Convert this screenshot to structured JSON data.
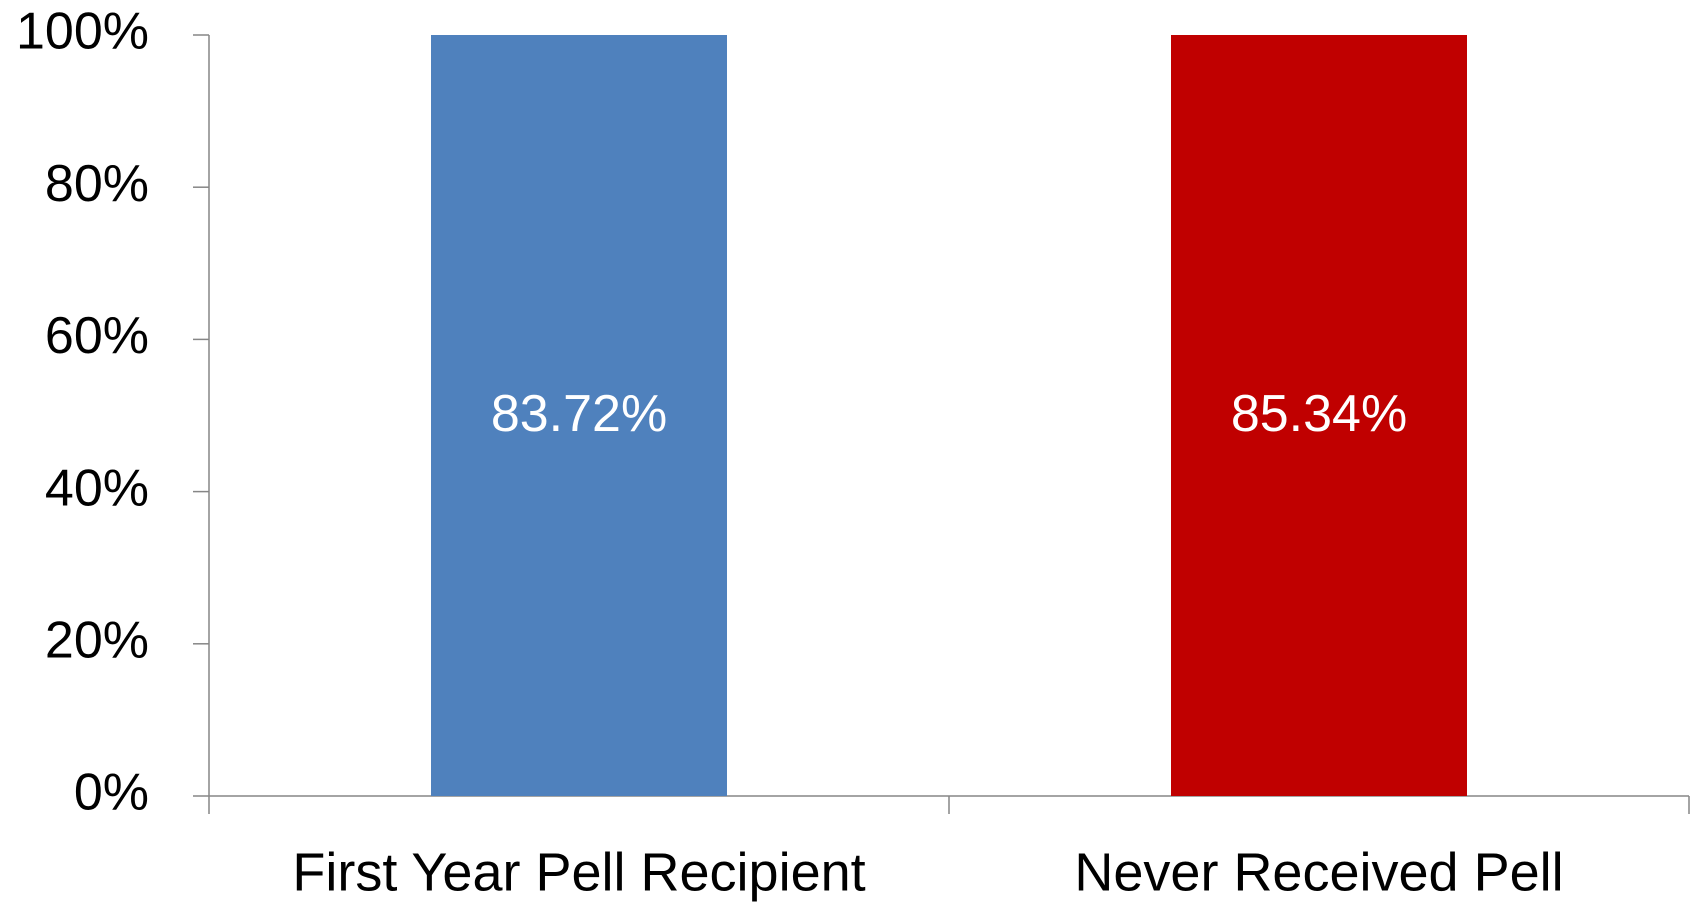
{
  "chart_data": {
    "type": "bar",
    "stacking": "percent",
    "categories": [
      "First Year Pell Recipient",
      "Never Received Pell"
    ],
    "values": [
      83.72,
      85.34
    ],
    "value_labels": [
      "83.72%",
      "85.34%"
    ],
    "colors": [
      "#4f81bd",
      "#c00000"
    ],
    "ylim": [
      0,
      100
    ],
    "yticks": [
      {
        "value": 0,
        "label": "0%"
      },
      {
        "value": 20,
        "label": "20%"
      },
      {
        "value": 40,
        "label": "40%"
      },
      {
        "value": 60,
        "label": "60%"
      },
      {
        "value": 80,
        "label": "80%"
      },
      {
        "value": 100,
        "label": "100%"
      }
    ],
    "grid": false
  }
}
